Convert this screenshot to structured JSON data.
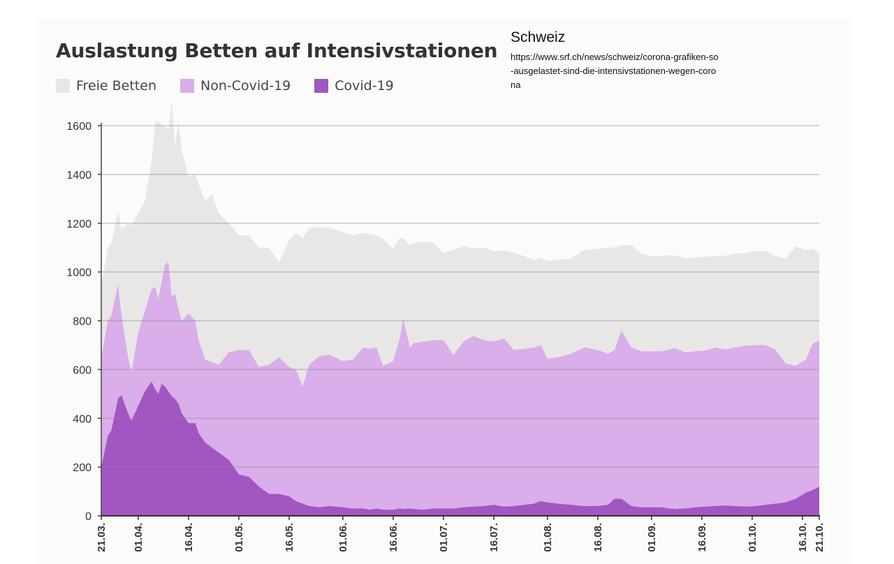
{
  "source": {
    "region": "Schweiz",
    "url": "https://www.srf.ch/news/schweiz/corona-grafiken-so-ausgelastet-sind-die-intensivstationen-wegen-corona"
  },
  "chart_data": {
    "type": "area",
    "stacking": "stacked",
    "title": "Auslastung Betten auf Intensivstationen",
    "xlabel": "",
    "ylabel": "",
    "ylim": [
      0,
      1650
    ],
    "yticks": [
      0,
      200,
      400,
      600,
      800,
      1000,
      1200,
      1400,
      1600
    ],
    "grid": "horizontal",
    "legend_position": "top-left",
    "xtick_labels": [
      "21.03.",
      "01.04.",
      "16.04.",
      "01.05.",
      "16.05.",
      "01.06.",
      "16.06.",
      "01.07.",
      "16.07.",
      "01.08.",
      "16.08.",
      "01.09.",
      "16.09.",
      "01.10.",
      "16.10.",
      "21.10."
    ],
    "xtick_day_index": [
      0,
      11,
      26,
      41,
      56,
      72,
      87,
      102,
      117,
      133,
      148,
      164,
      179,
      194,
      209,
      214
    ],
    "x_sample_day_index": [
      0,
      2,
      3,
      5,
      6,
      8,
      9,
      11,
      13,
      15,
      16,
      17,
      18,
      19,
      20,
      21,
      22,
      23,
      24,
      26,
      28,
      29,
      31,
      33,
      35,
      38,
      41,
      44,
      47,
      50,
      53,
      56,
      58,
      60,
      62,
      65,
      68,
      72,
      75,
      78,
      80,
      82,
      84,
      87,
      89,
      90,
      92,
      93,
      96,
      99,
      102,
      105,
      108,
      111,
      114,
      117,
      120,
      123,
      126,
      129,
      131,
      133,
      136,
      140,
      144,
      148,
      151,
      153,
      155,
      158,
      161,
      164,
      167,
      169,
      171,
      174,
      177,
      180,
      183,
      186,
      189,
      192,
      195,
      198,
      201,
      204,
      207,
      210,
      212,
      214
    ],
    "series": [
      {
        "name": "Covid-19",
        "color": "#a256c2",
        "values": [
          200,
          330,
          350,
          480,
          495,
          420,
          390,
          450,
          510,
          550,
          520,
          500,
          540,
          530,
          510,
          490,
          480,
          460,
          420,
          380,
          380,
          340,
          300,
          280,
          260,
          230,
          170,
          160,
          120,
          90,
          90,
          80,
          60,
          50,
          40,
          35,
          40,
          35,
          30,
          30,
          25,
          30,
          25,
          25,
          30,
          28,
          30,
          28,
          25,
          30,
          30,
          30,
          35,
          38,
          40,
          45,
          38,
          40,
          45,
          50,
          60,
          55,
          50,
          45,
          40,
          40,
          45,
          70,
          70,
          40,
          35,
          35,
          35,
          30,
          28,
          30,
          35,
          38,
          40,
          42,
          40,
          38,
          40,
          45,
          50,
          55,
          70,
          95,
          105,
          120
        ]
      },
      {
        "name": "Non-Covid-19",
        "color": "#d9aeea",
        "values": [
          450,
          470,
          470,
          470,
          330,
          230,
          200,
          300,
          330,
          380,
          420,
          390,
          420,
          500,
          530,
          410,
          430,
          390,
          380,
          450,
          420,
          380,
          340,
          350,
          360,
          440,
          510,
          520,
          490,
          530,
          560,
          530,
          540,
          480,
          580,
          620,
          620,
          600,
          610,
          660,
          660,
          660,
          590,
          610,
          700,
          780,
          660,
          680,
          690,
          690,
          690,
          630,
          680,
          700,
          680,
          670,
          690,
          640,
          640,
          640,
          640,
          590,
          600,
          620,
          650,
          640,
          620,
          610,
          690,
          650,
          640,
          640,
          640,
          650,
          660,
          640,
          640,
          640,
          650,
          640,
          650,
          660,
          660,
          655,
          630,
          570,
          545,
          545,
          600,
          600
        ]
      },
      {
        "name": "Freie Betten",
        "color": "#e8e7e6",
        "values": [
          300,
          300,
          300,
          300,
          350,
          550,
          600,
          490,
          450,
          520,
          670,
          730,
          640,
          570,
          540,
          800,
          610,
          770,
          700,
          560,
          600,
          640,
          650,
          690,
          620,
          530,
          470,
          470,
          490,
          480,
          390,
          520,
          560,
          610,
          560,
          530,
          520,
          530,
          510,
          470,
          470,
          460,
          520,
          460,
          410,
          330,
          420,
          410,
          410,
          400,
          360,
          430,
          390,
          360,
          380,
          370,
          360,
          400,
          380,
          360,
          360,
          400,
          400,
          390,
          400,
          415,
          435,
          420,
          350,
          420,
          400,
          390,
          390,
          390,
          380,
          385,
          385,
          385,
          375,
          385,
          385,
          380,
          385,
          385,
          385,
          430,
          490,
          450,
          390,
          360
        ]
      }
    ]
  }
}
